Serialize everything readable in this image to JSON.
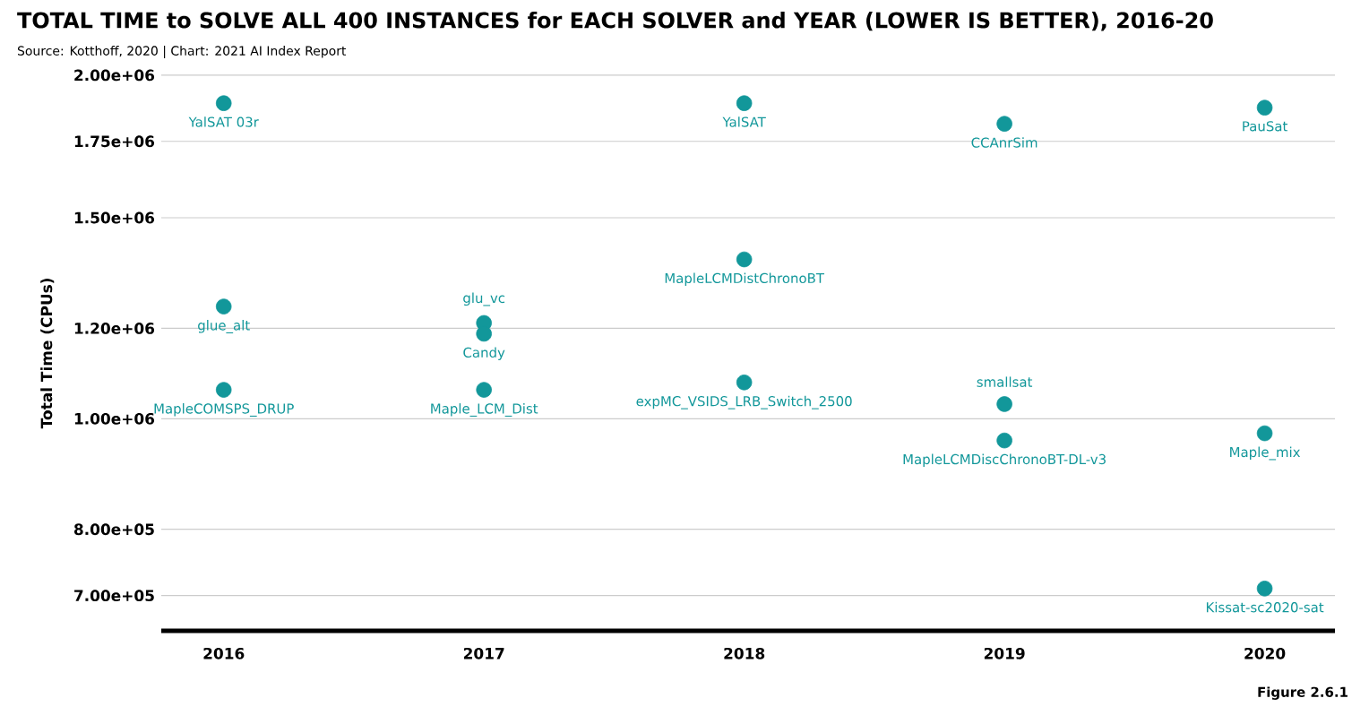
{
  "chart_data": {
    "type": "scatter",
    "title": "TOTAL TIME to SOLVE ALL 400 INSTANCES for EACH SOLVER and YEAR (LOWER IS BETTER), 2016-20",
    "ylabel": "Total Time (CPUs)",
    "x": [
      2016,
      2016,
      2016,
      2017,
      2017,
      2017,
      2018,
      2018,
      2018,
      2019,
      2019,
      2019,
      2020,
      2020,
      2020
    ],
    "series": [
      {
        "color": "#12979a",
        "values": [
          1890000,
          1254000,
          1060000,
          1213000,
          1187000,
          1060000,
          1890000,
          1379000,
          1076000,
          1813000,
          1030000,
          957000,
          1873000,
          971000,
          710000
        ]
      }
    ],
    "xlim": [
      2015.76,
      2020.27
    ],
    "xticks": [
      2016,
      2017,
      2018,
      2019,
      2020
    ],
    "ylim": [
      652000,
      2000000
    ],
    "log": "y",
    "yticks": [
      {
        "value": 700000,
        "label": "7.00e+05"
      },
      {
        "value": 800000,
        "label": "8.00e+05"
      },
      {
        "value": 1000000,
        "label": "1.00e+06"
      },
      {
        "value": 1200000,
        "label": "1.20e+06"
      },
      {
        "value": 1500000,
        "label": "1.50e+06"
      },
      {
        "value": 1750000,
        "label": "1.75e+06"
      },
      {
        "value": 2000000,
        "label": "2.00e+06"
      }
    ],
    "grid": "y",
    "annotations": [
      "Source: Kotthoff, 2020 | Chart: 2021 AI Index Report",
      {
        "text": "YalSAT 03r",
        "x": 2016,
        "y": 1890000
      },
      {
        "text": "glue_alt",
        "x": 2016,
        "y": 1254000
      },
      {
        "text": "MapleCOMSPS_DRUP",
        "x": 2016,
        "y": 1060000
      },
      {
        "text": "glu_vc",
        "x": 2017,
        "y": 1213000
      },
      {
        "text": "Candy",
        "x": 2017,
        "y": 1187000
      },
      {
        "text": "Maple_LCM_Dist",
        "x": 2017,
        "y": 1060000
      },
      {
        "text": "YalSAT",
        "x": 2018,
        "y": 1890000
      },
      {
        "text": "MapleLCMDistChronoBT",
        "x": 2018,
        "y": 1379000
      },
      {
        "text": "expMC_VSIDS_LRB_Switch_2500",
        "x": 2018,
        "y": 1076000
      },
      {
        "text": "CCAnrSim",
        "x": 2019,
        "y": 1813000
      },
      {
        "text": "smallsat",
        "x": 2019,
        "y": 1030000
      },
      {
        "text": "MapleLCMDiscChronoBT-DL-v3",
        "x": 2019,
        "y": 957000
      },
      {
        "text": "PauSat",
        "x": 2020,
        "y": 1873000
      },
      {
        "text": "Maple_mix",
        "x": 2020,
        "y": 971000
      },
      {
        "text": "Kissat-sc2020-sat",
        "x": 2020,
        "y": 710000
      },
      "Figure 2.6.1"
    ]
  }
}
